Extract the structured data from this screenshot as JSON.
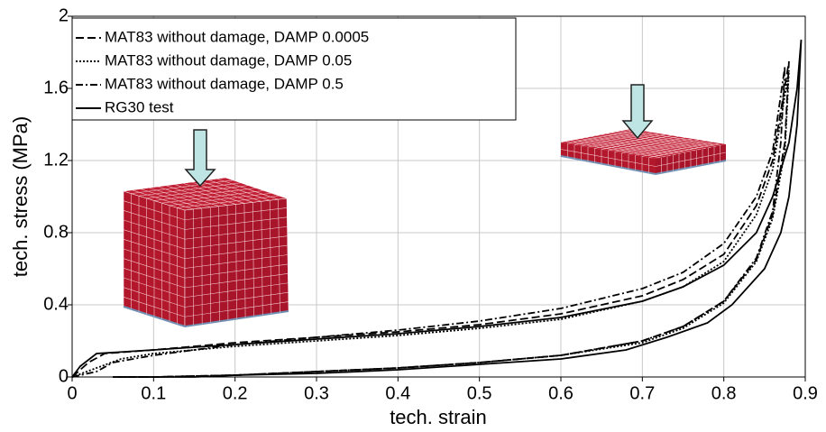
{
  "chart_data": {
    "type": "line",
    "x_label": "tech. strain",
    "y_label": "tech. stress (MPa)",
    "xlim": [
      0,
      0.9
    ],
    "ylim": [
      0,
      2
    ],
    "xticks": [
      0,
      0.1,
      0.2,
      0.3,
      0.4,
      0.5,
      0.6,
      0.7,
      0.8,
      0.9
    ],
    "yticks": [
      0,
      0.4,
      0.8,
      1.2,
      1.6,
      2
    ],
    "grid": true,
    "legend": "upper left",
    "series": [
      {
        "name": "MAT83 without damage, DAMP 0.0005",
        "color": "#000000",
        "line_style": "dashed",
        "x": [
          0,
          0.02,
          0.04,
          0.1,
          0.2,
          0.3,
          0.4,
          0.5,
          0.6,
          0.7,
          0.75,
          0.8,
          0.84,
          0.86,
          0.88,
          0.875,
          0.86,
          0.84,
          0.8,
          0.75,
          0.7,
          0.6,
          0.5,
          0.4,
          0.3,
          0.2,
          0.1,
          0.05
        ],
        "values": [
          0,
          0.08,
          0.13,
          0.15,
          0.19,
          0.22,
          0.25,
          0.29,
          0.35,
          0.45,
          0.54,
          0.68,
          0.95,
          1.2,
          1.75,
          1.3,
          0.9,
          0.65,
          0.42,
          0.28,
          0.2,
          0.12,
          0.08,
          0.05,
          0.03,
          0.01,
          0,
          0
        ]
      },
      {
        "name": "MAT83 without damage, DAMP 0.05",
        "color": "#000000",
        "line_style": "dotted",
        "x": [
          0,
          0.03,
          0.06,
          0.1,
          0.2,
          0.3,
          0.4,
          0.5,
          0.6,
          0.7,
          0.75,
          0.8,
          0.84,
          0.86,
          0.88,
          0.875,
          0.86,
          0.84,
          0.8,
          0.75,
          0.7,
          0.6,
          0.5,
          0.4,
          0.3,
          0.2,
          0.1,
          0.05
        ],
        "values": [
          0,
          0.05,
          0.1,
          0.13,
          0.17,
          0.2,
          0.23,
          0.27,
          0.32,
          0.42,
          0.5,
          0.64,
          0.9,
          1.15,
          1.7,
          1.25,
          0.88,
          0.64,
          0.41,
          0.27,
          0.19,
          0.12,
          0.08,
          0.05,
          0.03,
          0.01,
          0,
          0
        ]
      },
      {
        "name": "MAT83 without damage, DAMP 0.5",
        "color": "#000000",
        "line_style": "dashdot",
        "x": [
          0,
          0.03,
          0.05,
          0.1,
          0.2,
          0.3,
          0.4,
          0.5,
          0.6,
          0.7,
          0.75,
          0.8,
          0.84,
          0.86,
          0.875,
          0.87,
          0.86,
          0.84,
          0.8,
          0.75,
          0.7,
          0.6,
          0.5,
          0.4,
          0.3,
          0.2,
          0.1,
          0.05
        ],
        "values": [
          0,
          0.03,
          0.08,
          0.12,
          0.18,
          0.22,
          0.26,
          0.31,
          0.38,
          0.49,
          0.58,
          0.74,
          1.0,
          1.25,
          1.72,
          1.3,
          0.92,
          0.66,
          0.42,
          0.28,
          0.2,
          0.12,
          0.08,
          0.05,
          0.03,
          0.01,
          0,
          0
        ]
      },
      {
        "name": "RG30 test",
        "color": "#000000",
        "line_style": "solid",
        "x": [
          0,
          0.01,
          0.03,
          0.1,
          0.2,
          0.3,
          0.4,
          0.5,
          0.6,
          0.7,
          0.75,
          0.8,
          0.84,
          0.86,
          0.88,
          0.89,
          0.895,
          0.89,
          0.88,
          0.87,
          0.85,
          0.81,
          0.78,
          0.73,
          0.68,
          0.6,
          0.5,
          0.4,
          0.3,
          0.2,
          0.15,
          0.05
        ],
        "values": [
          0,
          0.06,
          0.13,
          0.15,
          0.18,
          0.21,
          0.24,
          0.28,
          0.33,
          0.42,
          0.5,
          0.62,
          0.8,
          1.0,
          1.3,
          1.6,
          1.87,
          1.4,
          1.0,
          0.8,
          0.6,
          0.4,
          0.3,
          0.22,
          0.15,
          0.1,
          0.07,
          0.04,
          0.02,
          0.01,
          0,
          0
        ]
      }
    ]
  }
}
